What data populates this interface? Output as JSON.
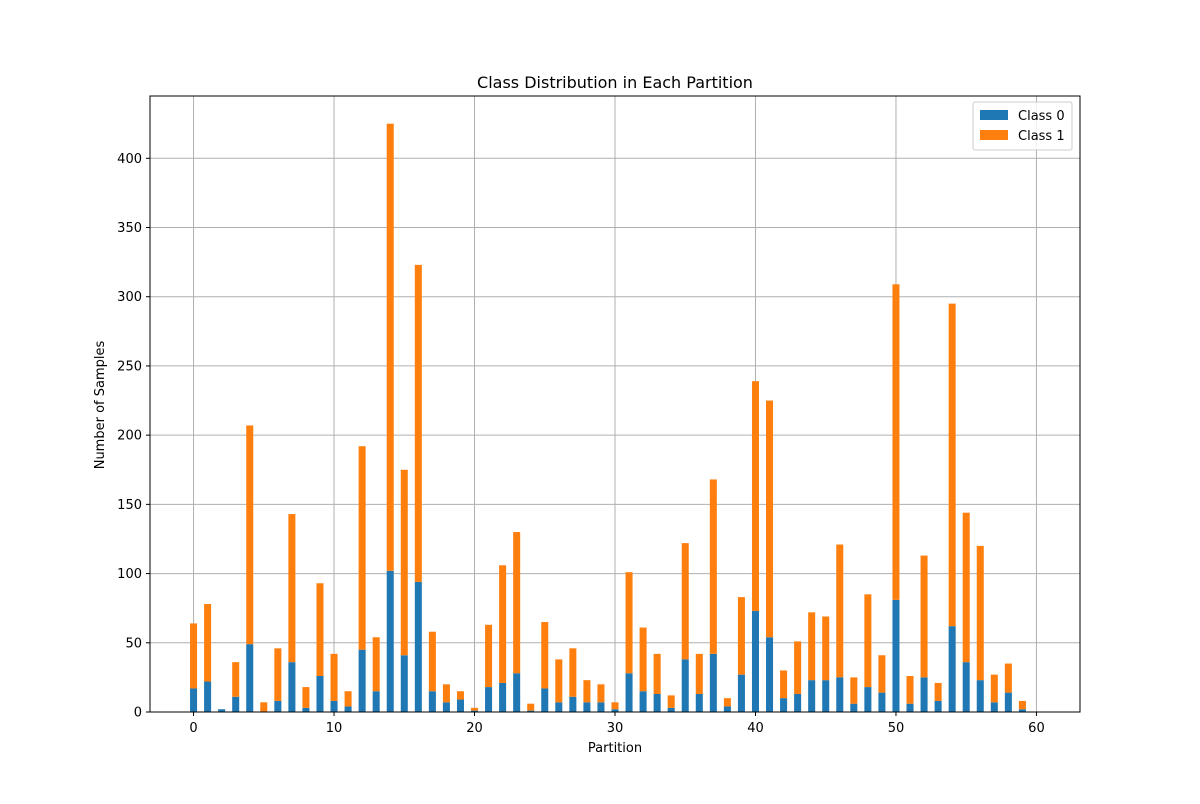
{
  "chart_data": {
    "type": "bar",
    "stacked": true,
    "title": "Class Distribution in Each Partition",
    "xlabel": "Partition",
    "ylabel": "Number of Samples",
    "xlim": [
      -3.1,
      63.1
    ],
    "ylim": [
      0,
      445
    ],
    "xticks": [
      0,
      10,
      20,
      30,
      40,
      50,
      60
    ],
    "xtick_labels": [
      "0",
      "10",
      "20",
      "30",
      "40",
      "50",
      "60"
    ],
    "yticks": [
      0,
      50,
      100,
      150,
      200,
      250,
      300,
      350,
      400
    ],
    "ytick_labels": [
      "0",
      "50",
      "100",
      "150",
      "200",
      "250",
      "300",
      "350",
      "400"
    ],
    "grid": true,
    "legend_position": "top-right",
    "categories": [
      0,
      1,
      2,
      3,
      4,
      5,
      6,
      7,
      8,
      9,
      10,
      11,
      12,
      13,
      14,
      15,
      16,
      17,
      18,
      19,
      20,
      21,
      22,
      23,
      24,
      25,
      26,
      27,
      28,
      29,
      30,
      31,
      32,
      33,
      34,
      35,
      36,
      37,
      38,
      39,
      40,
      41,
      42,
      43,
      44,
      45,
      46,
      47,
      48,
      49,
      50,
      51,
      52,
      53,
      54,
      55,
      56,
      57,
      58,
      59
    ],
    "series": [
      {
        "name": "Class 0",
        "color": "#1f77b4",
        "values": [
          17,
          22,
          2,
          11,
          49,
          0,
          8,
          36,
          3,
          26,
          8,
          4,
          45,
          15,
          102,
          41,
          94,
          15,
          7,
          9,
          1,
          18,
          21,
          28,
          1,
          17,
          7,
          11,
          7,
          7,
          2,
          28,
          15,
          13,
          3,
          38,
          13,
          42,
          4,
          27,
          73,
          54,
          10,
          13,
          23,
          23,
          25,
          6,
          18,
          14,
          81,
          6,
          25,
          8,
          62,
          36,
          23,
          7,
          14,
          2
        ]
      },
      {
        "name": "Class 1",
        "color": "#ff7f0e",
        "values": [
          47,
          56,
          0,
          25,
          158,
          7,
          38,
          107,
          15,
          67,
          34,
          11,
          147,
          39,
          323,
          134,
          229,
          43,
          13,
          6,
          2,
          45,
          85,
          102,
          5,
          48,
          31,
          35,
          16,
          13,
          5,
          73,
          46,
          29,
          9,
          84,
          29,
          126,
          6,
          56,
          166,
          171,
          20,
          38,
          49,
          46,
          96,
          19,
          67,
          27,
          228,
          20,
          88,
          13,
          233,
          108,
          97,
          20,
          21,
          6
        ]
      }
    ]
  }
}
